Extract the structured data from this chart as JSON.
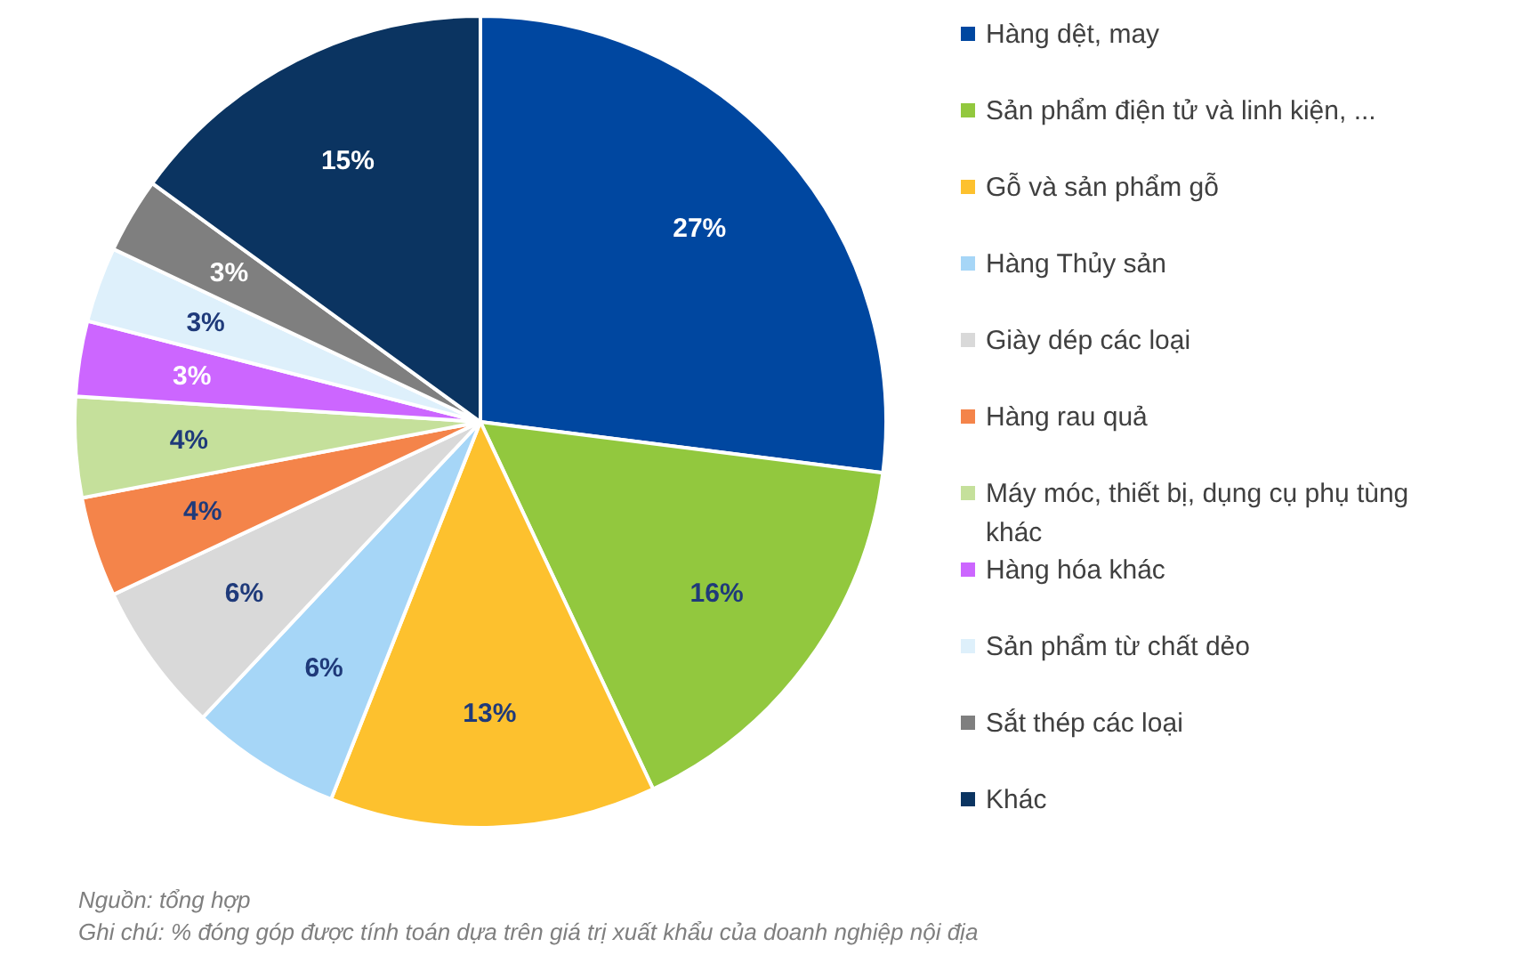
{
  "chart_data": {
    "type": "pie",
    "categories": [
      "Hàng dệt, may",
      "Sản phẩm điện tử và linh kiện, ...",
      "Gỗ và sản phẩm gỗ",
      "Hàng Thủy sản",
      "Giày dép các loại",
      "Hàng rau quả",
      "Máy móc, thiết bị, dụng cụ phụ tùng khác",
      "Hàng hóa khác",
      "Sản phẩm từ chất dẻo",
      "Sắt thép các loại",
      "Khác"
    ],
    "values": [
      27,
      16,
      13,
      6,
      6,
      4,
      4,
      3,
      3,
      3,
      15
    ],
    "colors": [
      "#0047a0",
      "#92c83e",
      "#fdc12e",
      "#a6d6f7",
      "#d9d9d9",
      "#f4844a",
      "#c5e09b",
      "#cc66ff",
      "#def0fb",
      "#7f7f7f",
      "#0b3461"
    ],
    "value_labels": [
      "27%",
      "16%",
      "13%",
      "6%",
      "6%",
      "4%",
      "4%",
      "3%",
      "3%",
      "3%",
      "15%"
    ],
    "legend": "right",
    "annotations": [
      "Nguồn: tổng hợp",
      "Ghi chú: % đóng góp được tính toán dựa trên giá trị xuất khẩu của doanh nghiệp nội địa"
    ]
  }
}
